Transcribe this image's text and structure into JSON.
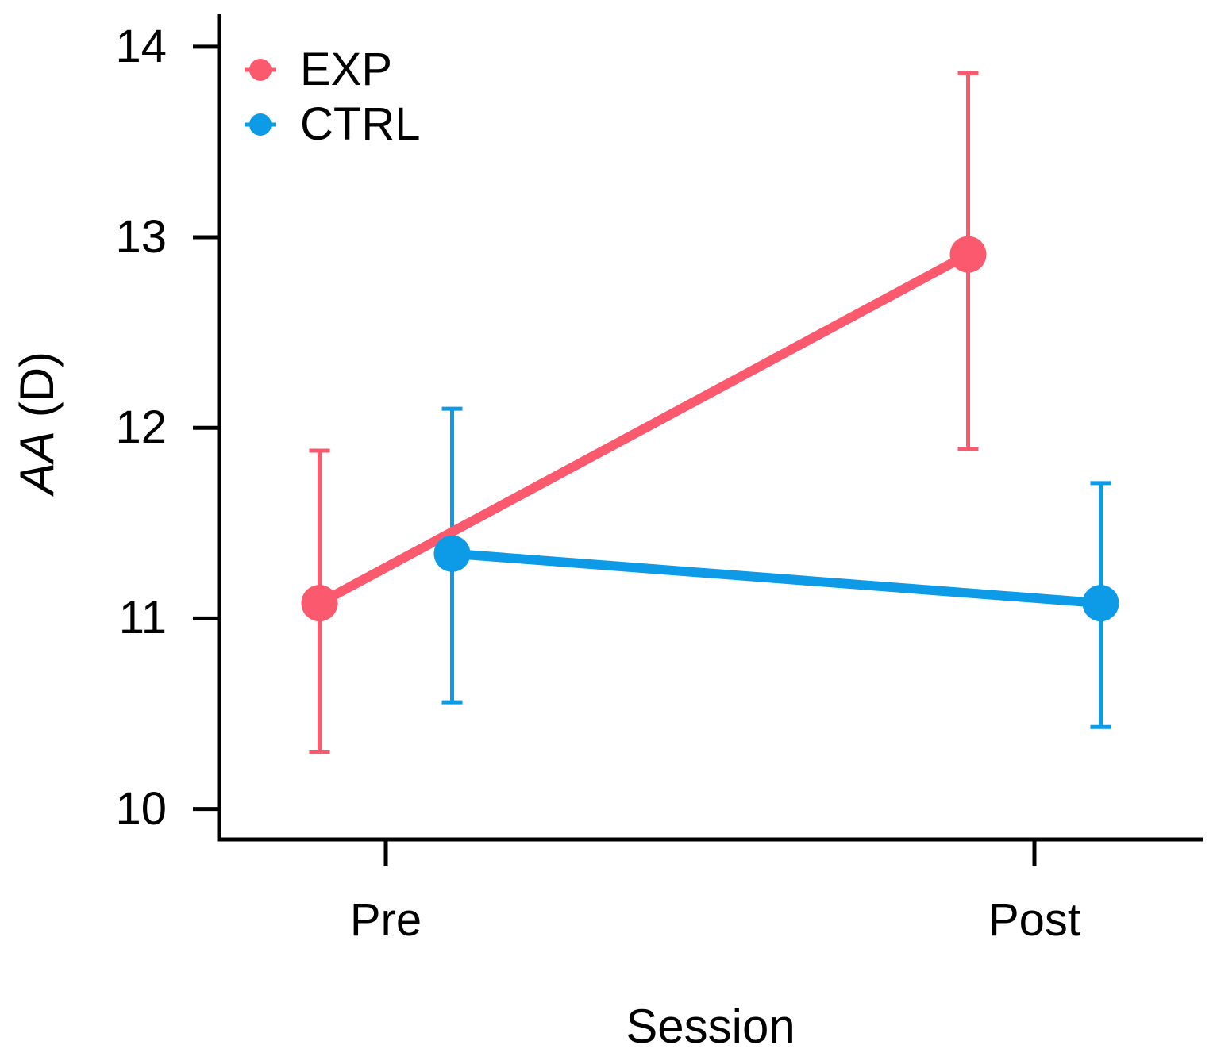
{
  "chart_data": {
    "type": "line",
    "title": "",
    "xlabel": "Session",
    "ylabel": "AA (D)",
    "ylabel_italic": "AA",
    "ylabel_rest": " (D)",
    "categories": [
      "Pre",
      "Post"
    ],
    "y_ticks": [
      14,
      13,
      12,
      11,
      10
    ],
    "ylim": [
      9.84,
      14.17
    ],
    "grid": false,
    "legend_position": "top-left",
    "axis_color": "#000000",
    "text_color": "#000000",
    "series": [
      {
        "name": "EXP",
        "color": "#FB5A6E",
        "values": [
          11.08,
          12.91
        ],
        "ci_low": [
          10.3,
          11.89
        ],
        "ci_high": [
          11.88,
          13.86
        ]
      },
      {
        "name": "CTRL",
        "color": "#0D9BE8",
        "values": [
          11.34,
          11.08
        ],
        "ci_low": [
          10.56,
          10.43
        ],
        "ci_high": [
          12.1,
          11.71
        ]
      }
    ]
  }
}
